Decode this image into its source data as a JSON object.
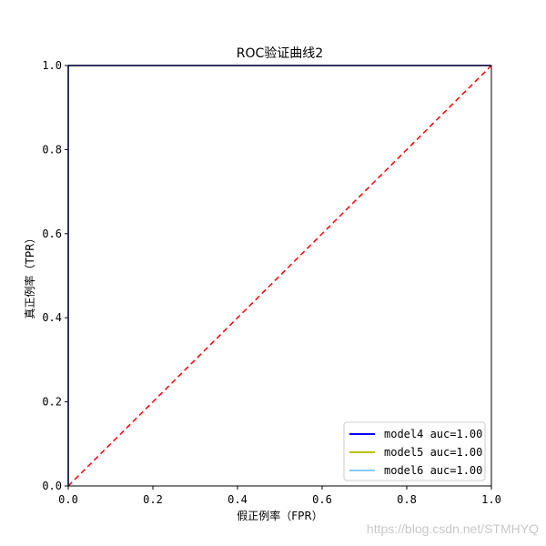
{
  "chart_data": {
    "type": "line",
    "title": "ROC验证曲线2",
    "xlabel": "假正例率（FPR）",
    "ylabel": "真正例率（TPR）",
    "xlim": [
      0.0,
      1.0
    ],
    "ylim": [
      0.0,
      1.0
    ],
    "xticks": [
      "0.0",
      "0.2",
      "0.4",
      "0.6",
      "0.8",
      "1.0"
    ],
    "yticks": [
      "0.0",
      "0.2",
      "0.4",
      "0.6",
      "0.8",
      "1.0"
    ],
    "grid": false,
    "legend_position": "lower right",
    "series": [
      {
        "name": "model4 auc=1.00",
        "color": "#0000ff",
        "x": [
          0.0,
          0.0,
          0.0,
          1.0
        ],
        "y": [
          0.0,
          0.333,
          1.0,
          1.0
        ]
      },
      {
        "name": "model5 auc=1.00",
        "color": "#bfbf00",
        "x": [
          0.0,
          0.0,
          0.0,
          1.0
        ],
        "y": [
          0.0,
          0.667,
          1.0,
          1.0
        ]
      },
      {
        "name": "model6 auc=1.00",
        "color": "#87cefa",
        "x": [
          0.0,
          0.0,
          1.0
        ],
        "y": [
          0.0,
          1.0,
          1.0
        ]
      }
    ],
    "reference_line": {
      "color": "#ff0000",
      "style": "dashed",
      "x": [
        0.0,
        1.0
      ],
      "y": [
        0.0,
        1.0
      ]
    }
  },
  "watermark": "https://blog.csdn.net/STMHYQ"
}
